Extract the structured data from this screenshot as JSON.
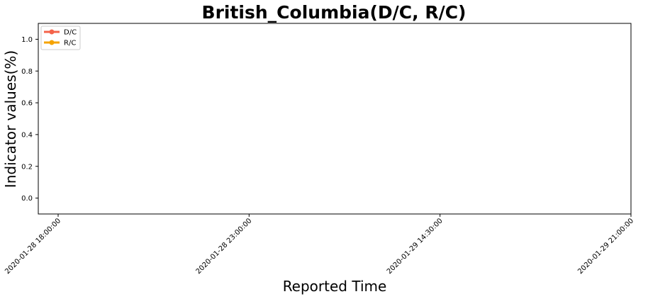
{
  "chart_data": {
    "type": "line",
    "title": "British_Columbia(D/C, R/C)",
    "xlabel": "Reported Time",
    "ylabel": "Indicator values(%)",
    "x_tick_labels": [
      "2020-01-28 18:00:00",
      "2020-01-28 23:00:00",
      "2020-01-29 14:30:00",
      "2020-01-29 21:00:00"
    ],
    "y_ticks": [
      0.0,
      0.2,
      0.4,
      0.6,
      0.8,
      1.0
    ],
    "y_tick_labels": [
      "0.0",
      "0.2",
      "0.4",
      "0.6",
      "0.8",
      "1.0"
    ],
    "ylim": [
      -0.1,
      1.1
    ],
    "grid": false,
    "legend_position": "top-left",
    "series": [
      {
        "name": "D/C",
        "color": "#f4634a",
        "values": []
      },
      {
        "name": "R/C",
        "color": "#f5a300",
        "values": []
      }
    ]
  }
}
